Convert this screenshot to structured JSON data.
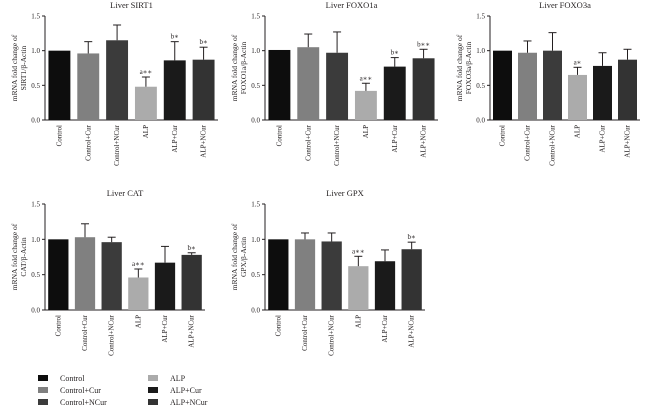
{
  "chart_data": [
    {
      "type": "bar",
      "title": "Liver SIRT1",
      "ylabel_line1": "mRNA fold change of",
      "ylabel_line2": "SIRT1/β-Actin",
      "ylim": [
        0,
        1.5
      ],
      "yticks": [
        "0.0",
        "0.5",
        "1.0",
        "1.5"
      ],
      "categories": [
        "Control",
        "Control+Cur",
        "Control+NCur",
        "ALP",
        "ALP+Cur",
        "ALP+NCur"
      ],
      "values": [
        1.0,
        0.96,
        1.15,
        0.48,
        0.86,
        0.87
      ],
      "errors": [
        0.0,
        0.17,
        0.22,
        0.14,
        0.27,
        0.18
      ],
      "annotations": [
        "",
        "",
        "",
        "a∗∗",
        "b∗",
        "b∗"
      ]
    },
    {
      "type": "bar",
      "title": "Liver FOXO1a",
      "ylabel_line1": "mRNA fold change of",
      "ylabel_line2": "FOXO1a/β-Actin",
      "ylim": [
        0,
        1.5
      ],
      "yticks": [
        "0.0",
        "0.5",
        "1.0",
        "1.5"
      ],
      "categories": [
        "Control",
        "Control+Cur",
        "Control+NCur",
        "ALP",
        "ALP+Cur",
        "ALP+NCur"
      ],
      "values": [
        1.01,
        1.05,
        0.97,
        0.42,
        0.77,
        0.89
      ],
      "errors": [
        0.0,
        0.19,
        0.3,
        0.11,
        0.13,
        0.13
      ],
      "annotations": [
        "",
        "",
        "",
        "a∗∗",
        "b∗",
        "b∗∗"
      ]
    },
    {
      "type": "bar",
      "title": "Liver FOXO3a",
      "ylabel_line1": "mRNA fold change of",
      "ylabel_line2": "FOXO3a/β-Actin",
      "ylim": [
        0,
        1.5
      ],
      "yticks": [
        "0.0",
        "0.5",
        "1.0",
        "1.5"
      ],
      "categories": [
        "Control",
        "Control+Cur",
        "Control+NCur",
        "ALP",
        "ALP+Cur",
        "ALP+NCur"
      ],
      "values": [
        1.0,
        0.97,
        1.0,
        0.65,
        0.78,
        0.87
      ],
      "errors": [
        0.0,
        0.17,
        0.26,
        0.11,
        0.19,
        0.15
      ],
      "annotations": [
        "",
        "",
        "",
        "a∗",
        "",
        ""
      ]
    },
    {
      "type": "bar",
      "title": "Liver CAT",
      "ylabel_line1": "mRNA fold change of",
      "ylabel_line2": "CAT/β-Actin",
      "ylim": [
        0,
        1.5
      ],
      "yticks": [
        "0.0",
        "0.5",
        "1.0",
        "1.5"
      ],
      "categories": [
        "Control",
        "Control+Cur",
        "Control+NCur",
        "ALP",
        "ALP+Cur",
        "ALP+NCur"
      ],
      "values": [
        1.0,
        1.03,
        0.96,
        0.46,
        0.67,
        0.78
      ],
      "errors": [
        0.0,
        0.19,
        0.07,
        0.12,
        0.23,
        0.03
      ],
      "annotations": [
        "",
        "",
        "",
        "a∗∗",
        "",
        "b∗"
      ]
    },
    {
      "type": "bar",
      "title": "Liver GPX",
      "ylabel_line1": "mRNA fold change of",
      "ylabel_line2": "GPX/β-Actin",
      "ylim": [
        0,
        1.5
      ],
      "yticks": [
        "0.0",
        "0.5",
        "1.0",
        "1.5"
      ],
      "categories": [
        "Control",
        "Control+Cur",
        "Control+NCur",
        "ALP",
        "ALP+Cur",
        "ALP+NCur"
      ],
      "values": [
        1.0,
        1.0,
        0.97,
        0.62,
        0.69,
        0.86
      ],
      "errors": [
        0.0,
        0.09,
        0.12,
        0.14,
        0.16,
        0.1
      ],
      "annotations": [
        "",
        "",
        "",
        "a∗∗",
        "",
        "b∗"
      ]
    }
  ],
  "series_colors": [
    "#0d0d0d",
    "#808080",
    "#3b3b3b",
    "#ababab",
    "#1a1a1a",
    "#333333"
  ],
  "legend": [
    {
      "label": "Control",
      "color": "#0d0d0d"
    },
    {
      "label": "Control+Cur",
      "color": "#808080"
    },
    {
      "label": "Control+NCur",
      "color": "#3b3b3b"
    },
    {
      "label": "ALP",
      "color": "#ababab"
    },
    {
      "label": "ALP+Cur",
      "color": "#1a1a1a"
    },
    {
      "label": "ALP+NCur",
      "color": "#333333"
    }
  ]
}
